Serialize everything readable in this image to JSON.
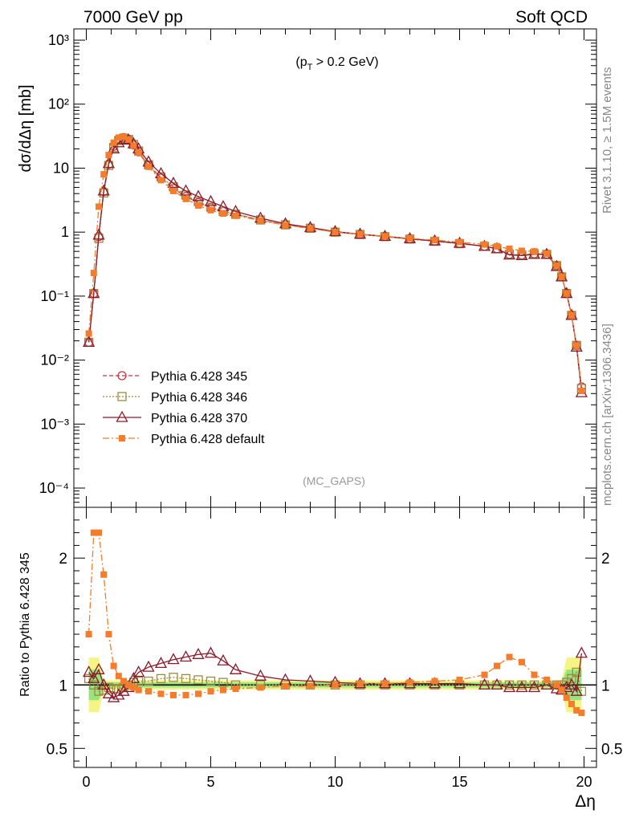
{
  "header": {
    "left": "7000 GeV pp",
    "right": "Soft QCD"
  },
  "side_labels": {
    "rivet": "Rivet 3.1.10, ≥ 1.5M events",
    "source": "mcplots.cern.ch [arXiv:1306.3436]"
  },
  "watermark": "(MC_GAPS)",
  "cut_label": "(pT > 0.2 GeV)",
  "colors": {
    "p345": "#cc3344",
    "p346": "#9e8a3e",
    "p370": "#8b1a2b",
    "default": "#f47c2c",
    "band_inner": "#7fe07f",
    "band_outer": "#f2f266"
  },
  "chart_data": [
    {
      "type": "line",
      "panel": "main",
      "ylabel": "dσ/dΔη [mb]",
      "yscale": "log",
      "ylim": [
        5e-05,
        1500
      ],
      "xlim": [
        -0.5,
        20.5
      ],
      "yticks": [
        "10⁻⁴",
        "10⁻³",
        "10⁻²",
        "10⁻¹",
        "1",
        "10",
        "10²",
        "10³"
      ],
      "legend_position": "middle-left",
      "x": [
        0.1,
        0.3,
        0.5,
        0.7,
        0.9,
        1.1,
        1.3,
        1.5,
        1.7,
        1.9,
        2.1,
        2.5,
        3.0,
        3.5,
        4.0,
        4.5,
        5.0,
        5.5,
        6.0,
        7.0,
        8.0,
        9.0,
        10.0,
        11.0,
        12.0,
        13.0,
        14.0,
        15.0,
        16.0,
        16.5,
        17.0,
        17.5,
        18.0,
        18.5,
        18.9,
        19.1,
        19.3,
        19.5,
        19.7,
        19.9
      ],
      "series": [
        {
          "name": "Pythia 6.428 345",
          "key": "p345",
          "values": [
            0.019,
            0.11,
            0.85,
            4.3,
            11.5,
            22,
            28,
            30,
            28,
            23,
            18,
            11,
            7.0,
            4.8,
            3.6,
            2.9,
            2.4,
            2.1,
            1.9,
            1.55,
            1.3,
            1.15,
            1.0,
            0.92,
            0.85,
            0.78,
            0.72,
            0.66,
            0.6,
            0.55,
            0.45,
            0.44,
            0.46,
            0.45,
            0.3,
            0.2,
            0.11,
            0.05,
            0.017,
            0.0038
          ]
        },
        {
          "name": "Pythia 6.428 346",
          "key": "p346",
          "values": [
            0.019,
            0.11,
            0.8,
            4.1,
            11.0,
            21,
            27,
            29.5,
            28,
            23.5,
            18.5,
            11.3,
            7.3,
            5.1,
            3.8,
            3.0,
            2.45,
            2.1,
            1.9,
            1.55,
            1.3,
            1.15,
            1.0,
            0.92,
            0.85,
            0.78,
            0.72,
            0.66,
            0.6,
            0.55,
            0.45,
            0.44,
            0.46,
            0.45,
            0.3,
            0.2,
            0.11,
            0.05,
            0.017,
            0.0036
          ]
        },
        {
          "name": "Pythia 6.428 370",
          "key": "p370",
          "values": [
            0.019,
            0.11,
            0.9,
            4.4,
            11.8,
            20,
            25,
            28,
            27.5,
            24,
            20,
            12.5,
            8.2,
            5.8,
            4.4,
            3.6,
            3.0,
            2.5,
            2.1,
            1.65,
            1.35,
            1.18,
            1.02,
            0.93,
            0.86,
            0.79,
            0.73,
            0.67,
            0.6,
            0.55,
            0.44,
            0.43,
            0.45,
            0.45,
            0.29,
            0.2,
            0.11,
            0.05,
            0.016,
            0.0031
          ]
        },
        {
          "name": "Pythia 6.428 default",
          "key": "default",
          "values": [
            0.026,
            0.23,
            2.5,
            8.0,
            16,
            25,
            30,
            31,
            28,
            22.5,
            17.5,
            10.5,
            6.5,
            4.4,
            3.3,
            2.6,
            2.2,
            1.95,
            1.8,
            1.52,
            1.28,
            1.14,
            1.0,
            0.93,
            0.86,
            0.8,
            0.75,
            0.7,
            0.64,
            0.6,
            0.55,
            0.51,
            0.5,
            0.46,
            0.3,
            0.2,
            0.11,
            0.05,
            0.017,
            0.0033
          ]
        }
      ]
    },
    {
      "type": "line",
      "panel": "ratio",
      "ylabel": "Ratio to Pythia 6.428 345",
      "xlabel": "Δη",
      "ylim": [
        0.35,
        2.4
      ],
      "xlim": [
        -0.5,
        20.5
      ],
      "yticks": [
        0.5,
        1,
        2
      ],
      "xticks": [
        0,
        5,
        10,
        15,
        20
      ],
      "x": [
        0.1,
        0.3,
        0.5,
        0.7,
        0.9,
        1.1,
        1.3,
        1.5,
        1.7,
        1.9,
        2.1,
        2.5,
        3.0,
        3.5,
        4.0,
        4.5,
        5.0,
        5.5,
        6.0,
        7.0,
        8.0,
        9.0,
        10.0,
        11.0,
        12.0,
        13.0,
        14.0,
        15.0,
        16.0,
        16.5,
        17.0,
        17.5,
        18.0,
        18.5,
        18.9,
        19.1,
        19.3,
        19.5,
        19.7,
        19.9
      ],
      "series": [
        {
          "name": "Pythia 6.428 345",
          "key": "p345",
          "values": [
            1,
            1,
            1,
            1,
            1,
            1,
            1,
            1,
            1,
            1,
            1,
            1,
            1,
            1,
            1,
            1,
            1,
            1,
            1,
            1,
            1,
            1,
            1,
            1,
            1,
            1,
            1,
            1,
            1,
            1,
            1,
            1,
            1,
            1,
            1,
            1,
            1,
            1,
            1,
            1
          ]
        },
        {
          "name": "Pythia 6.428 346",
          "key": "p346",
          "values": [
            1.05,
            1.0,
            0.95,
            0.96,
            0.98,
            0.97,
            0.97,
            0.98,
            1.0,
            1.02,
            1.03,
            1.03,
            1.05,
            1.06,
            1.05,
            1.04,
            1.03,
            1.02,
            1.0,
            1.0,
            1.0,
            1.0,
            1.0,
            1.0,
            1.0,
            1.0,
            1.0,
            1.0,
            1.0,
            1.0,
            1.0,
            1.0,
            1.0,
            1.0,
            1.0,
            1.0,
            1.02,
            1.05,
            1.1,
            0.95
          ]
        },
        {
          "name": "Pythia 6.428 370",
          "key": "p370",
          "values": [
            1.1,
            1.05,
            1.12,
            1.0,
            0.93,
            0.9,
            0.92,
            0.95,
            0.98,
            1.05,
            1.1,
            1.14,
            1.17,
            1.2,
            1.22,
            1.24,
            1.25,
            1.19,
            1.12,
            1.07,
            1.04,
            1.03,
            1.02,
            1.01,
            1.01,
            1.01,
            1.01,
            1.01,
            1.0,
            1.0,
            0.98,
            0.98,
            0.98,
            1.0,
            0.97,
            0.96,
            0.98,
            1.0,
            0.95,
            1.25
          ]
        },
        {
          "name": "Pythia 6.428 default",
          "key": "default",
          "values": [
            1.4,
            2.2,
            2.2,
            1.87,
            1.4,
            1.15,
            1.07,
            1.03,
            1.0,
            0.98,
            0.96,
            0.95,
            0.93,
            0.92,
            0.92,
            0.93,
            0.95,
            0.96,
            0.97,
            0.98,
            0.99,
            0.99,
            1.0,
            1.01,
            1.01,
            1.02,
            1.03,
            1.04,
            1.08,
            1.15,
            1.22,
            1.18,
            1.08,
            1.04,
            1.0,
            0.96,
            0.9,
            0.85,
            0.8,
            0.78
          ]
        }
      ]
    }
  ]
}
